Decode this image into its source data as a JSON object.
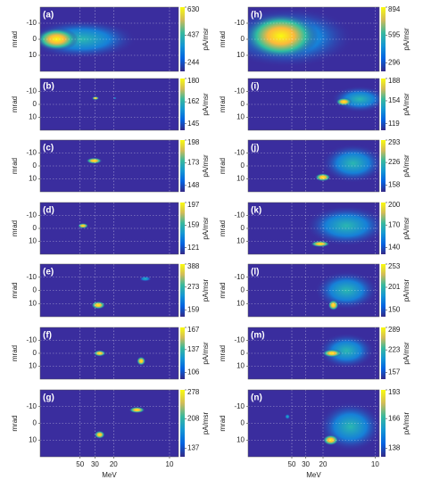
{
  "chart_data": [
    {
      "type": "heatmap",
      "label": "(a)",
      "ylabel": "mrad",
      "yticks": [
        -10,
        0,
        10
      ],
      "ylim": [
        -20,
        20
      ],
      "xscale": "reciprocal",
      "xlim": [
        -0.0157,
        0.108
      ],
      "xticks": [
        50,
        30,
        20,
        10
      ],
      "show_xticklabels": false,
      "cticks": [
        630,
        437,
        244
      ],
      "clim": [
        186,
        630
      ],
      "clabel": "pA/msr",
      "grid": true
    },
    {
      "type": "heatmap",
      "label": "(b)",
      "ylabel": "mrad",
      "yticks": [
        -10,
        0,
        10
      ],
      "ylim": [
        -20,
        20
      ],
      "xscale": "reciprocal",
      "xlim": [
        -0.0157,
        0.108
      ],
      "xticks": [
        50,
        30,
        20,
        10
      ],
      "show_xticklabels": false,
      "cticks": [
        180,
        162,
        145
      ],
      "clim": [
        140,
        180
      ],
      "clabel": "pA/msr",
      "grid": true
    },
    {
      "type": "heatmap",
      "label": "(c)",
      "ylabel": "mrad",
      "yticks": [
        -10,
        0,
        10
      ],
      "ylim": [
        -20,
        20
      ],
      "xscale": "reciprocal",
      "xlim": [
        -0.0157,
        0.108
      ],
      "xticks": [
        50,
        30,
        20,
        10
      ],
      "show_xticklabels": false,
      "cticks": [
        198,
        173,
        148
      ],
      "clim": [
        141,
        198
      ],
      "clabel": "pA/msr",
      "grid": true
    },
    {
      "type": "heatmap",
      "label": "(d)",
      "ylabel": "mrad",
      "yticks": [
        -10,
        0,
        10
      ],
      "ylim": [
        -20,
        20
      ],
      "xscale": "reciprocal",
      "xlim": [
        -0.0157,
        0.108
      ],
      "xticks": [
        50,
        30,
        20,
        10
      ],
      "show_xticklabels": false,
      "cticks": [
        197,
        159,
        121
      ],
      "clim": [
        110,
        197
      ],
      "clabel": "pA/msr",
      "grid": true
    },
    {
      "type": "heatmap",
      "label": "(e)",
      "ylabel": "mrad",
      "yticks": [
        -10,
        0,
        10
      ],
      "ylim": [
        -20,
        20
      ],
      "xscale": "reciprocal",
      "xlim": [
        -0.0157,
        0.108
      ],
      "xticks": [
        50,
        30,
        20,
        10
      ],
      "show_xticklabels": false,
      "cticks": [
        388,
        273,
        159
      ],
      "clim": [
        125,
        388
      ],
      "clabel": "pA/msr",
      "grid": true
    },
    {
      "type": "heatmap",
      "label": "(f)",
      "ylabel": "mrad",
      "yticks": [
        -10,
        0,
        10
      ],
      "ylim": [
        -20,
        20
      ],
      "xscale": "reciprocal",
      "xlim": [
        -0.0157,
        0.108
      ],
      "xticks": [
        50,
        30,
        20,
        10
      ],
      "show_xticklabels": false,
      "cticks": [
        167,
        137,
        106
      ],
      "clim": [
        97,
        167
      ],
      "clabel": "pA/msr",
      "grid": true
    },
    {
      "type": "heatmap",
      "label": "(g)",
      "ylabel": "mrad",
      "yticks": [
        -10,
        0,
        10
      ],
      "ylim": [
        -20,
        20
      ],
      "xscale": "reciprocal",
      "xlim": [
        -0.0157,
        0.108
      ],
      "xticks": [
        50,
        30,
        20,
        10
      ],
      "show_xticklabels": true,
      "xlabel": "MeV",
      "cticks": [
        278,
        208,
        137
      ],
      "clim": [
        116,
        278
      ],
      "clabel": "pA/msr",
      "grid": true
    },
    {
      "type": "heatmap",
      "label": "(h)",
      "ylabel": "mrad",
      "yticks": [
        -10,
        0,
        10
      ],
      "ylim": [
        -20,
        20
      ],
      "xscale": "reciprocal",
      "xlim": [
        -0.022,
        0.104
      ],
      "xticks": [
        50,
        30,
        20,
        10
      ],
      "show_xticklabels": false,
      "cticks": [
        894,
        595,
        296
      ],
      "clim": [
        206,
        894
      ],
      "clabel": "pA/msr",
      "grid": true
    },
    {
      "type": "heatmap",
      "label": "(i)",
      "ylabel": "mrad",
      "yticks": [
        -10,
        0,
        10
      ],
      "ylim": [
        -20,
        20
      ],
      "xscale": "reciprocal",
      "xlim": [
        -0.022,
        0.104
      ],
      "xticks": [
        50,
        30,
        20,
        10
      ],
      "show_xticklabels": false,
      "cticks": [
        188,
        154,
        119
      ],
      "clim": [
        109,
        188
      ],
      "clabel": "pA/msr",
      "grid": true
    },
    {
      "type": "heatmap",
      "label": "(j)",
      "ylabel": "mrad",
      "yticks": [
        -10,
        0,
        10
      ],
      "ylim": [
        -20,
        20
      ],
      "xscale": "reciprocal",
      "xlim": [
        -0.022,
        0.104
      ],
      "xticks": [
        50,
        30,
        20,
        10
      ],
      "show_xticklabels": false,
      "cticks": [
        293,
        226,
        158
      ],
      "clim": [
        138,
        293
      ],
      "clabel": "pA/msr",
      "grid": true
    },
    {
      "type": "heatmap",
      "label": "(k)",
      "ylabel": "mrad",
      "yticks": [
        -10,
        0,
        10
      ],
      "ylim": [
        -20,
        20
      ],
      "xscale": "reciprocal",
      "xlim": [
        -0.022,
        0.104
      ],
      "xticks": [
        50,
        30,
        20,
        10
      ],
      "show_xticklabels": false,
      "cticks": [
        200,
        170,
        140
      ],
      "clim": [
        131,
        200
      ],
      "clabel": "pA/msr",
      "grid": true
    },
    {
      "type": "heatmap",
      "label": "(l)",
      "ylabel": "mrad",
      "yticks": [
        -10,
        0,
        10
      ],
      "ylim": [
        -20,
        20
      ],
      "xscale": "reciprocal",
      "xlim": [
        -0.022,
        0.104
      ],
      "xticks": [
        50,
        30,
        20,
        10
      ],
      "show_xticklabels": false,
      "cticks": [
        253,
        201,
        150
      ],
      "clim": [
        135,
        253
      ],
      "clabel": "pA/msr",
      "grid": true
    },
    {
      "type": "heatmap",
      "label": "(m)",
      "ylabel": "mrad",
      "yticks": [
        -10,
        0,
        10
      ],
      "ylim": [
        -20,
        20
      ],
      "xscale": "reciprocal",
      "xlim": [
        -0.022,
        0.104
      ],
      "xticks": [
        50,
        30,
        20,
        10
      ],
      "show_xticklabels": false,
      "cticks": [
        289,
        223,
        157
      ],
      "clim": [
        137,
        289
      ],
      "clabel": "pA/msr",
      "grid": true
    },
    {
      "type": "heatmap",
      "label": "(n)",
      "ylabel": "mrad",
      "yticks": [
        -10,
        0,
        10
      ],
      "ylim": [
        -20,
        20
      ],
      "xscale": "reciprocal",
      "xlim": [
        -0.022,
        0.104
      ],
      "xticks": [
        50,
        30,
        20,
        10
      ],
      "show_xticklabels": true,
      "xlabel": "MeV",
      "cticks": [
        193,
        166,
        138
      ],
      "clim": [
        130,
        193
      ],
      "clabel": "pA/msr",
      "grid": true
    }
  ]
}
